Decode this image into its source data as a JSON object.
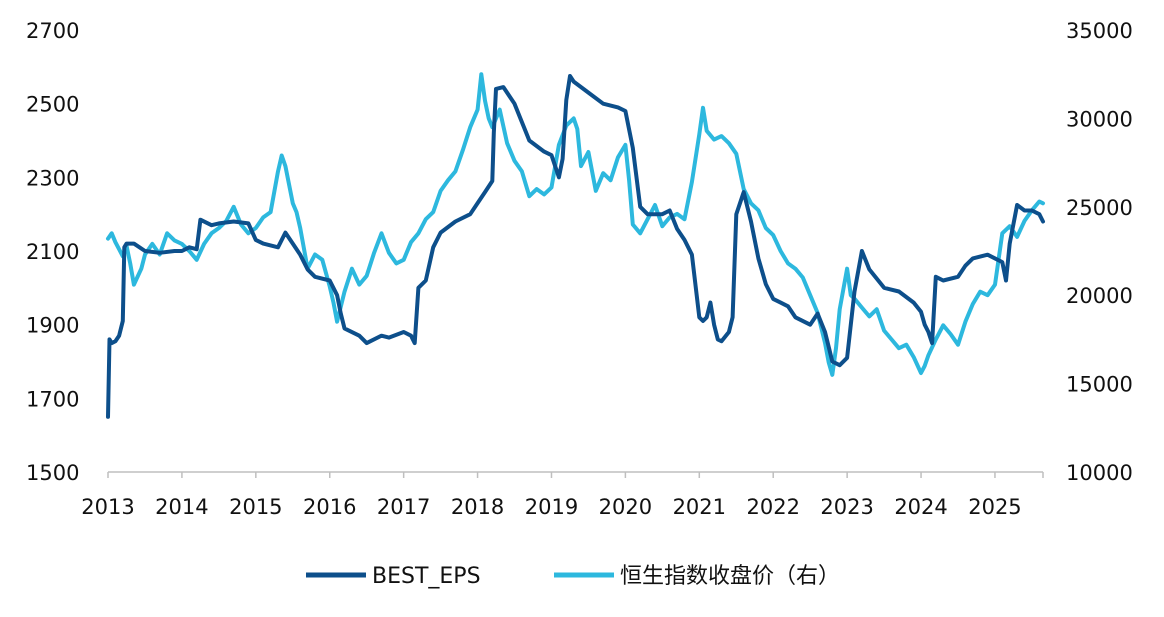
{
  "chart_data": {
    "type": "line",
    "title": "",
    "xlabel": "",
    "ylabel": "",
    "y2label": "",
    "grid": false,
    "legend_position": "bottom",
    "x_ticks": [
      "2013",
      "2014",
      "2015",
      "2016",
      "2017",
      "2018",
      "2019",
      "2020",
      "2021",
      "2022",
      "2023",
      "2024",
      "2025"
    ],
    "x_range": [
      2013.0,
      2025.65
    ],
    "y_left_ticks": [
      "1500",
      "1700",
      "1900",
      "2100",
      "2300",
      "2500",
      "2700"
    ],
    "y_left_range": [
      1500,
      2700
    ],
    "y_right_ticks": [
      "10000",
      "15000",
      "20000",
      "25000",
      "30000",
      "35000"
    ],
    "y_right_range": [
      10000,
      35000
    ],
    "series": [
      {
        "name": "BEST_EPS",
        "axis": "left",
        "color": "#0d4f8b",
        "x": [
          2013.0,
          2013.02,
          2013.05,
          2013.1,
          2013.15,
          2013.2,
          2013.22,
          2013.25,
          2013.35,
          2013.5,
          2013.7,
          2013.9,
          2014.0,
          2014.1,
          2014.2,
          2014.25,
          2014.4,
          2014.5,
          2014.7,
          2014.9,
          2015.0,
          2015.1,
          2015.3,
          2015.4,
          2015.5,
          2015.6,
          2015.7,
          2015.8,
          2016.0,
          2016.1,
          2016.15,
          2016.2,
          2016.4,
          2016.5,
          2016.7,
          2016.8,
          2017.0,
          2017.1,
          2017.15,
          2017.2,
          2017.3,
          2017.4,
          2017.5,
          2017.7,
          2017.9,
          2018.0,
          2018.1,
          2018.2,
          2018.22,
          2018.25,
          2018.35,
          2018.5,
          2018.7,
          2018.9,
          2019.0,
          2019.1,
          2019.15,
          2019.2,
          2019.25,
          2019.3,
          2019.5,
          2019.7,
          2019.9,
          2020.0,
          2020.1,
          2020.2,
          2020.3,
          2020.5,
          2020.6,
          2020.7,
          2020.8,
          2020.9,
          2021.0,
          2021.05,
          2021.1,
          2021.15,
          2021.2,
          2021.25,
          2021.3,
          2021.4,
          2021.45,
          2021.5,
          2021.6,
          2021.7,
          2021.8,
          2021.9,
          2022.0,
          2022.1,
          2022.2,
          2022.3,
          2022.5,
          2022.6,
          2022.7,
          2022.75,
          2022.8,
          2022.9,
          2023.0,
          2023.1,
          2023.2,
          2023.3,
          2023.5,
          2023.7,
          2023.9,
          2024.0,
          2024.05,
          2024.1,
          2024.15,
          2024.2,
          2024.3,
          2024.5,
          2024.6,
          2024.7,
          2024.9,
          2025.0,
          2025.1,
          2025.15,
          2025.2,
          2025.3,
          2025.4,
          2025.5,
          2025.6,
          2025.65
        ],
        "values": [
          1650,
          1860,
          1850,
          1855,
          1870,
          1910,
          2110,
          2120,
          2120,
          2100,
          2095,
          2100,
          2100,
          2110,
          2105,
          2185,
          2170,
          2175,
          2180,
          2175,
          2130,
          2120,
          2110,
          2150,
          2120,
          2090,
          2050,
          2030,
          2020,
          1980,
          1930,
          1890,
          1870,
          1850,
          1870,
          1865,
          1880,
          1870,
          1850,
          2000,
          2020,
          2110,
          2150,
          2180,
          2200,
          2230,
          2260,
          2290,
          2420,
          2540,
          2545,
          2500,
          2400,
          2370,
          2360,
          2300,
          2350,
          2510,
          2575,
          2560,
          2530,
          2500,
          2490,
          2480,
          2380,
          2220,
          2200,
          2200,
          2210,
          2160,
          2130,
          2090,
          1920,
          1910,
          1920,
          1960,
          1900,
          1860,
          1855,
          1880,
          1920,
          2200,
          2260,
          2180,
          2080,
          2010,
          1970,
          1960,
          1950,
          1920,
          1900,
          1930,
          1880,
          1840,
          1800,
          1790,
          1810,
          1990,
          2100,
          2050,
          2000,
          1990,
          1960,
          1935,
          1900,
          1880,
          1850,
          2030,
          2020,
          2030,
          2060,
          2080,
          2090,
          2080,
          2070,
          2020,
          2120,
          2225,
          2210,
          2210,
          2200,
          2180
        ]
      },
      {
        "name": "恒生指数收盘价（右）",
        "axis": "right",
        "color": "#2db8de",
        "x": [
          2013.0,
          2013.05,
          2013.1,
          2013.15,
          2013.2,
          2013.25,
          2013.3,
          2013.35,
          2013.45,
          2013.5,
          2013.6,
          2013.7,
          2013.8,
          2013.9,
          2014.0,
          2014.1,
          2014.2,
          2014.3,
          2014.4,
          2014.5,
          2014.6,
          2014.7,
          2014.8,
          2014.9,
          2015.0,
          2015.1,
          2015.2,
          2015.3,
          2015.35,
          2015.4,
          2015.5,
          2015.55,
          2015.6,
          2015.7,
          2015.8,
          2015.9,
          2016.0,
          2016.05,
          2016.1,
          2016.2,
          2016.3,
          2016.4,
          2016.5,
          2016.6,
          2016.7,
          2016.8,
          2016.9,
          2017.0,
          2017.1,
          2017.2,
          2017.3,
          2017.4,
          2017.5,
          2017.6,
          2017.7,
          2017.8,
          2017.9,
          2018.0,
          2018.05,
          2018.1,
          2018.15,
          2018.2,
          2018.3,
          2018.4,
          2018.5,
          2018.6,
          2018.7,
          2018.8,
          2018.9,
          2019.0,
          2019.1,
          2019.2,
          2019.3,
          2019.35,
          2019.4,
          2019.5,
          2019.6,
          2019.7,
          2019.8,
          2019.9,
          2020.0,
          2020.05,
          2020.1,
          2020.2,
          2020.3,
          2020.4,
          2020.5,
          2020.6,
          2020.7,
          2020.8,
          2020.9,
          2021.0,
          2021.05,
          2021.1,
          2021.2,
          2021.3,
          2021.4,
          2021.5,
          2021.6,
          2021.7,
          2021.8,
          2021.9,
          2022.0,
          2022.1,
          2022.2,
          2022.3,
          2022.4,
          2022.5,
          2022.6,
          2022.7,
          2022.75,
          2022.8,
          2022.85,
          2022.9,
          2023.0,
          2023.05,
          2023.1,
          2023.2,
          2023.3,
          2023.4,
          2023.5,
          2023.6,
          2023.7,
          2023.8,
          2023.9,
          2024.0,
          2024.05,
          2024.1,
          2024.2,
          2024.3,
          2024.4,
          2024.5,
          2024.6,
          2024.7,
          2024.8,
          2024.9,
          2025.0,
          2025.1,
          2025.2,
          2025.3,
          2025.4,
          2025.5,
          2025.6,
          2025.65
        ],
        "values": [
          23200,
          23500,
          23000,
          22600,
          22200,
          22800,
          21800,
          20600,
          21500,
          22300,
          22900,
          22300,
          23500,
          23100,
          22900,
          22500,
          22000,
          22900,
          23500,
          23800,
          24200,
          25000,
          24000,
          23500,
          23800,
          24400,
          24700,
          27000,
          27900,
          27300,
          25200,
          24700,
          23800,
          21500,
          22300,
          22000,
          20500,
          19600,
          18500,
          20200,
          21500,
          20600,
          21100,
          22400,
          23500,
          22400,
          21800,
          22000,
          23000,
          23500,
          24300,
          24700,
          25900,
          26500,
          27000,
          28200,
          29500,
          30500,
          32500,
          31000,
          30000,
          29500,
          30500,
          28600,
          27600,
          27000,
          25600,
          26000,
          25700,
          26100,
          28500,
          29600,
          30000,
          29400,
          27300,
          28100,
          25900,
          26900,
          26500,
          27800,
          28500,
          26500,
          24000,
          23500,
          24300,
          25100,
          23900,
          24400,
          24600,
          24300,
          26400,
          29100,
          30600,
          29300,
          28800,
          29000,
          28600,
          28000,
          26000,
          25200,
          24800,
          23800,
          23400,
          22500,
          21800,
          21500,
          21000,
          20000,
          19000,
          17300,
          16200,
          15500,
          17000,
          19200,
          21500,
          20000,
          19800,
          19300,
          18800,
          19200,
          18000,
          17500,
          17000,
          17200,
          16500,
          15600,
          16000,
          16600,
          17500,
          18300,
          17800,
          17200,
          18500,
          19500,
          20200,
          20000,
          20600,
          23500,
          23900,
          23300,
          24200,
          24800,
          25300,
          25200
        ]
      }
    ]
  }
}
